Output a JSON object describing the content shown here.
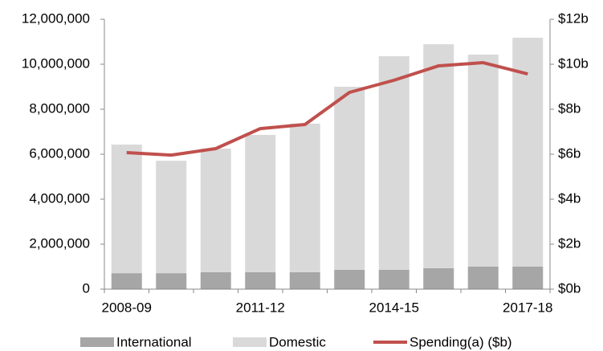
{
  "chart_data": {
    "type": "bar",
    "categories": [
      "2008-09",
      null,
      null,
      "2011-12",
      null,
      null,
      "2014-15",
      null,
      null,
      "2017-18"
    ],
    "series": [
      {
        "name": "International",
        "color": "#a6a6a6",
        "values": [
          710000,
          710000,
          750000,
          750000,
          750000,
          860000,
          860000,
          930000,
          1000000,
          1000000
        ]
      },
      {
        "name": "Domestic",
        "color": "#d9d9d9",
        "values": [
          5720000,
          5000000,
          5500000,
          6110000,
          6610000,
          8140000,
          9500000,
          9960000,
          9430000,
          10180000
        ]
      },
      {
        "name": "Spending(a) ($b)",
        "color": "#c0504d",
        "type": "line",
        "axis": "y2",
        "values": [
          6.07,
          5.96,
          6.25,
          7.14,
          7.32,
          8.75,
          9.29,
          9.93,
          10.07,
          9.57
        ]
      }
    ],
    "ylim": [
      0,
      12000000
    ],
    "yticks": [
      0,
      {
        "value": 2000000,
        "label": "2,000,000"
      },
      {
        "value": 4000000,
        "label": "4,000,000"
      },
      {
        "value": 6000000,
        "label": "6,000,000"
      },
      {
        "value": 8000000,
        "label": "8,000,000"
      },
      {
        "value": 10000000,
        "label": "10,000,000"
      },
      {
        "value": 12000000,
        "label": "12,000,000"
      }
    ],
    "y2lim": [
      0,
      12
    ],
    "y2ticks": [
      {
        "value": 0,
        "label": "$0b"
      },
      {
        "value": 2,
        "label": "$2b"
      },
      {
        "value": 4,
        "label": "$4b"
      },
      {
        "value": 6,
        "label": "$6b"
      },
      {
        "value": 8,
        "label": "$8b"
      },
      {
        "value": 10,
        "label": "$10b"
      },
      {
        "value": 12,
        "label": "$12b"
      }
    ],
    "stacked": true,
    "grid": false,
    "legend": "bottom"
  }
}
